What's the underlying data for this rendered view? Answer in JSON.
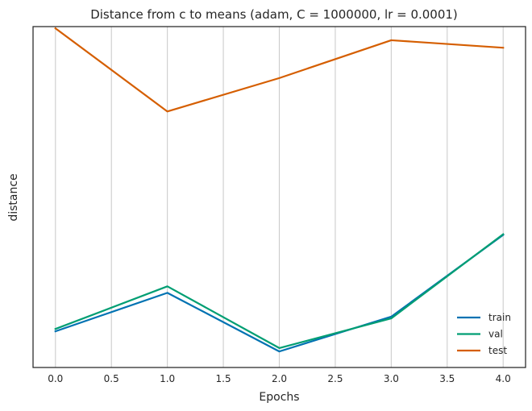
{
  "chart_data": {
    "type": "line",
    "title": "Distance from c to means (adam, C = 1000000, lr = 0.0001)",
    "xlabel": "Epochs",
    "ylabel": "distance",
    "x": [
      0,
      1,
      2,
      3,
      4
    ],
    "xticks": [
      0.0,
      0.5,
      1.0,
      1.5,
      2.0,
      2.5,
      3.0,
      3.5,
      4.0
    ],
    "xtick_labels": [
      "0.0",
      "0.5",
      "1.0",
      "1.5",
      "2.0",
      "2.5",
      "3.0",
      "3.5",
      "4.0"
    ],
    "xlim": [
      -0.2,
      4.2
    ],
    "ylim": [
      0,
      1
    ],
    "y_ticks_shown": false,
    "grid": "vertical",
    "legend_position": "bottom-right",
    "series": [
      {
        "name": "train",
        "color": "#0072b2",
        "values": [
          0.106,
          0.219,
          0.047,
          0.149,
          0.389
        ]
      },
      {
        "name": "val",
        "color": "#009e73",
        "values": [
          0.113,
          0.238,
          0.057,
          0.144,
          0.391
        ]
      },
      {
        "name": "test",
        "color": "#d55e00",
        "values": [
          0.995,
          0.751,
          0.849,
          0.96,
          0.938
        ]
      }
    ]
  }
}
